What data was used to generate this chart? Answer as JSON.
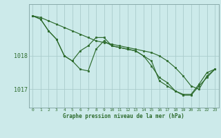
{
  "xlabel": "Graphe pression niveau de la mer (hPa)",
  "bg_color": "#cceaea",
  "line_color": "#2d6b2d",
  "grid_color": "#aacccc",
  "spine_color": "#88aaaa",
  "x_ticks": [
    0,
    1,
    2,
    3,
    4,
    5,
    6,
    7,
    8,
    9,
    10,
    11,
    12,
    13,
    14,
    15,
    16,
    17,
    18,
    19,
    20,
    21,
    22,
    23
  ],
  "ylim": [
    1016.45,
    1019.55
  ],
  "yticks": [
    1017,
    1018
  ],
  "series1": [
    1019.2,
    1019.15,
    1019.05,
    1018.95,
    1018.85,
    1018.75,
    1018.65,
    1018.55,
    1018.45,
    1018.4,
    1018.35,
    1018.3,
    1018.25,
    1018.2,
    1018.15,
    1018.1,
    1018.0,
    1017.85,
    1017.65,
    1017.4,
    1017.1,
    1017.0,
    1017.4,
    1017.6
  ],
  "series2": [
    1019.2,
    1019.1,
    1018.75,
    1018.5,
    1018.0,
    1017.85,
    1018.15,
    1018.3,
    1018.55,
    1018.55,
    1018.3,
    1018.25,
    1018.2,
    1018.15,
    1018.0,
    1017.7,
    1017.35,
    1017.2,
    1016.95,
    1016.85,
    1016.85,
    1017.15,
    1017.5,
    1017.6
  ],
  "series3": [
    1019.2,
    1019.1,
    1018.75,
    1018.5,
    1018.0,
    1017.85,
    1017.6,
    1017.55,
    1018.2,
    1018.45,
    1018.3,
    1018.25,
    1018.2,
    1018.15,
    1018.0,
    1017.85,
    1017.25,
    1017.1,
    1016.95,
    1016.82,
    1016.82,
    1017.1,
    1017.35,
    1017.6
  ]
}
